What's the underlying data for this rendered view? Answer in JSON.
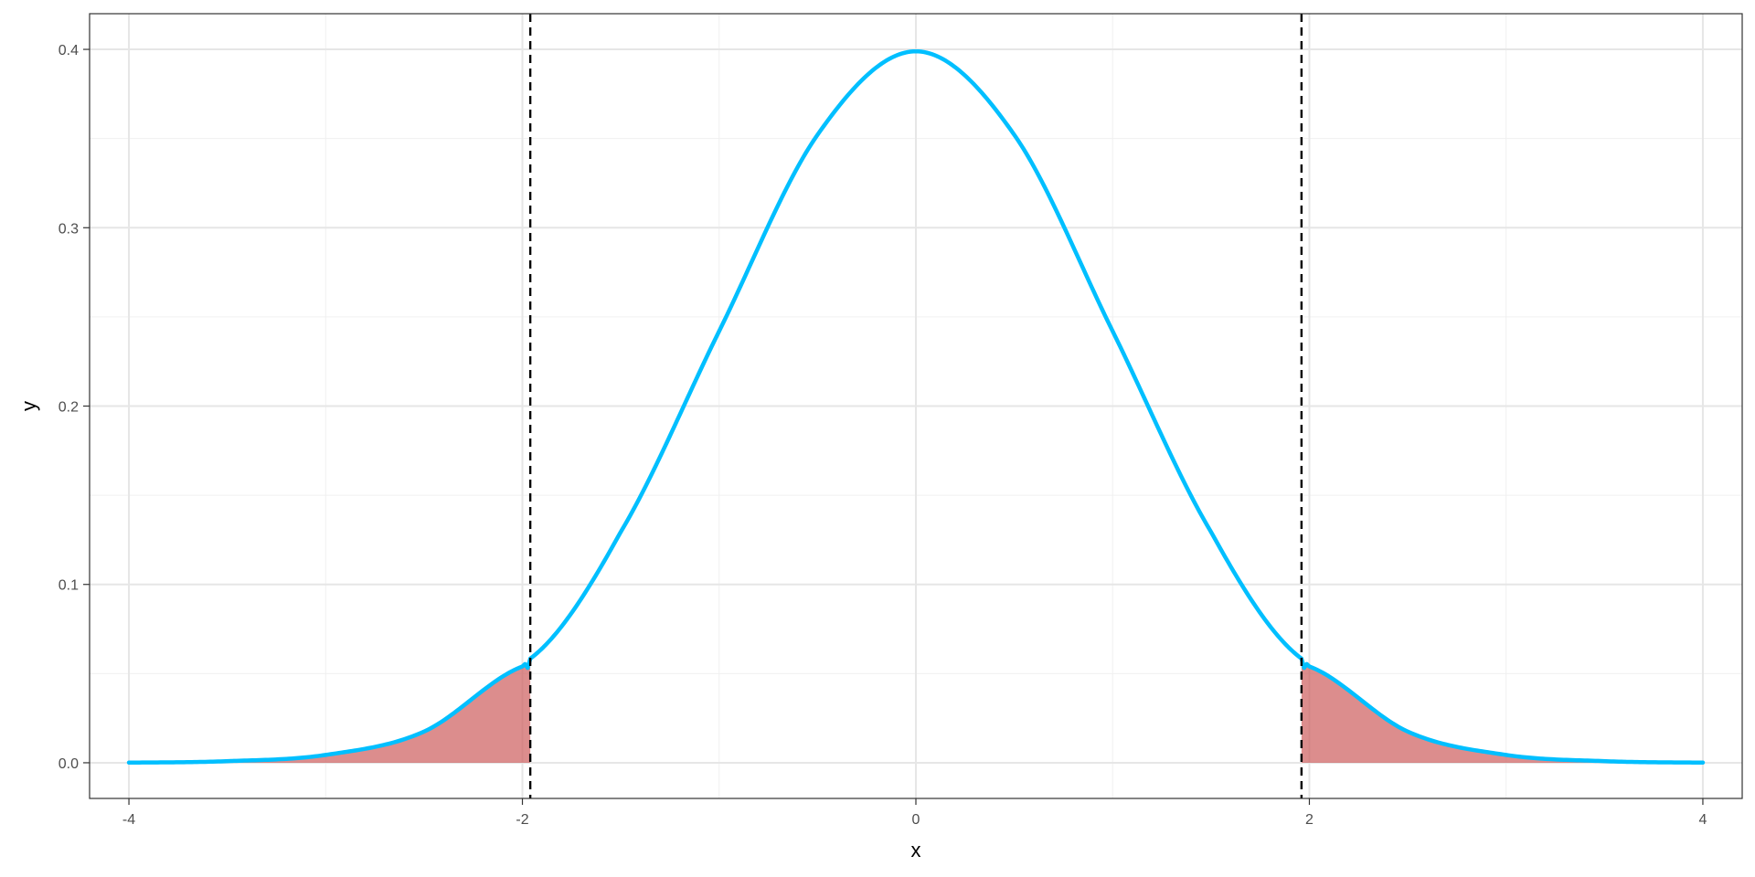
{
  "chart_data": {
    "type": "area",
    "title": "",
    "xlabel": "x",
    "ylabel": "y",
    "xlim": [
      -4.2,
      4.2
    ],
    "ylim": [
      -0.02,
      0.42
    ],
    "x_ticks": [
      -4,
      -2,
      0,
      2,
      4
    ],
    "x_tick_labels": [
      "-4",
      "-2",
      "0",
      "2",
      "4"
    ],
    "y_ticks": [
      0.0,
      0.1,
      0.2,
      0.3,
      0.4
    ],
    "y_tick_labels": [
      "0.0",
      "0.1",
      "0.2",
      "0.3",
      "0.4"
    ],
    "grid": true,
    "legend": "none",
    "x": [
      -4,
      -3.5,
      -3,
      -2.5,
      -2,
      -1.96,
      -1.5,
      -1,
      -0.5,
      0,
      0.5,
      1,
      1.5,
      1.96,
      2,
      2.5,
      3,
      3.5,
      4
    ],
    "series": [
      {
        "type": "line",
        "color": "#00bfff",
        "values": [
          0.0001,
          0.0009,
          0.0044,
          0.0175,
          0.054,
          0.0584,
          0.1295,
          0.242,
          0.3521,
          0.3989,
          0.3521,
          0.242,
          0.1295,
          0.0584,
          0.054,
          0.0175,
          0.0044,
          0.0009,
          0.0001
        ]
      }
    ],
    "shaded_regions": [
      {
        "from": -4,
        "to": -1.96,
        "color": "#cd5c5c"
      },
      {
        "from": 1.96,
        "to": 4,
        "color": "#cd5c5c"
      }
    ],
    "vlines": [
      {
        "x": -1.96,
        "style": "dashed",
        "color": "#000000"
      },
      {
        "x": 1.96,
        "style": "dashed",
        "color": "#000000"
      }
    ]
  }
}
